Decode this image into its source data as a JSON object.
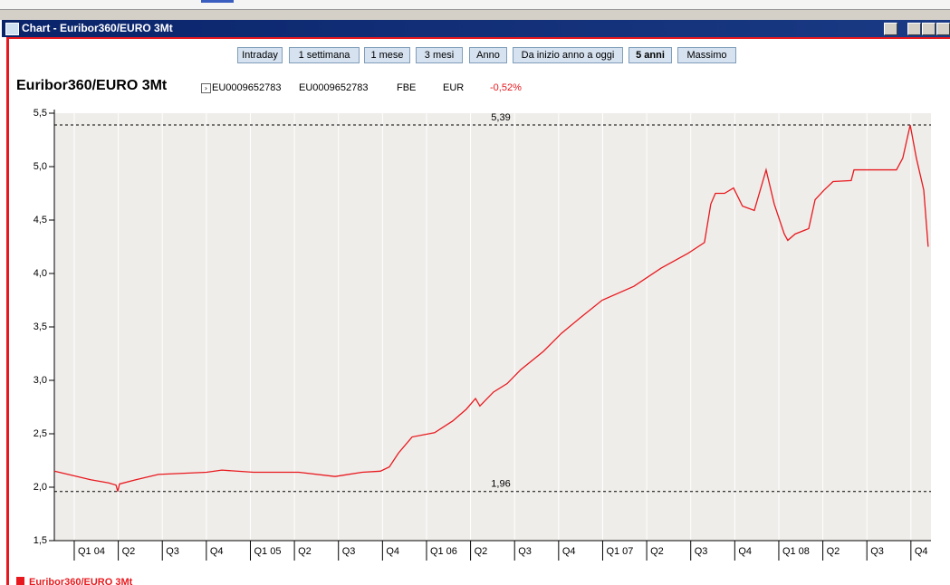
{
  "window": {
    "title": "Chart - Euribor360/EURO 3Mt",
    "buttons": [
      "Intraday",
      "1 settimana",
      "1 mese",
      "3 mesi",
      "Anno",
      "Da inizio anno a oggi",
      "5 anni",
      "Massimo"
    ]
  },
  "header": {
    "name": "Euribor360/EURO 3Mt",
    "isin": "EU0009652783",
    "code": "EU0009652783",
    "exchange": "FBE",
    "currency": "EUR",
    "change": "-0,52%"
  },
  "chart_data": {
    "type": "line",
    "x": [
      2003.887,
      2003.99,
      2004.093,
      2004.195,
      2004.237,
      2004.247,
      2004.257,
      2004.35,
      2004.478,
      2004.751,
      2004.838,
      2005.018,
      2005.275,
      2005.481,
      2005.635,
      2005.738,
      2005.789,
      2005.841,
      2005.918,
      2006.046,
      2006.149,
      2006.226,
      2006.278,
      2006.303,
      2006.38,
      2006.458,
      2006.535,
      2006.663,
      2006.766,
      2006.869,
      2006.997,
      2007.177,
      2007.332,
      2007.486,
      2007.578,
      2007.614,
      2007.64,
      2007.692,
      2007.743,
      2007.794,
      2007.861,
      2007.928,
      2007.974,
      2008.031,
      2008.051,
      2008.093,
      2008.17,
      2008.206,
      2008.257,
      2008.308,
      2008.411,
      2008.427,
      2008.668,
      2008.704,
      2008.746,
      2008.781,
      2008.823,
      2008.848
    ],
    "series": [
      {
        "name": "Euribor360/EURO 3Mt",
        "color": "#e8191e",
        "values": [
          2.15,
          2.11,
          2.07,
          2.04,
          2.02,
          1.96,
          2.03,
          2.07,
          2.12,
          2.14,
          2.16,
          2.14,
          2.14,
          2.1,
          2.14,
          2.15,
          2.19,
          2.32,
          2.47,
          2.51,
          2.62,
          2.73,
          2.83,
          2.76,
          2.89,
          2.97,
          3.1,
          3.27,
          3.44,
          3.58,
          3.75,
          3.88,
          4.05,
          4.19,
          4.29,
          4.65,
          4.75,
          4.75,
          4.8,
          4.63,
          4.59,
          4.97,
          4.65,
          4.37,
          4.31,
          4.37,
          4.42,
          4.69,
          4.78,
          4.86,
          4.87,
          4.97,
          4.97,
          5.08,
          5.39,
          5.08,
          4.78,
          4.25
        ]
      }
    ],
    "xlim": [
      2003.887,
      2008.864
    ],
    "xticks": [
      {
        "value": 2004,
        "label": "Q1 04"
      },
      {
        "value": 2004.25,
        "label": "Q2"
      },
      {
        "value": 2004.5,
        "label": "Q3"
      },
      {
        "value": 2004.75,
        "label": "Q4"
      },
      {
        "value": 2005,
        "label": "Q1 05"
      },
      {
        "value": 2005.25,
        "label": "Q2"
      },
      {
        "value": 2005.5,
        "label": "Q3"
      },
      {
        "value": 2005.75,
        "label": "Q4"
      },
      {
        "value": 2006,
        "label": "Q1 06"
      },
      {
        "value": 2006.25,
        "label": "Q2"
      },
      {
        "value": 2006.5,
        "label": "Q3"
      },
      {
        "value": 2006.75,
        "label": "Q4"
      },
      {
        "value": 2007,
        "label": "Q1 07"
      },
      {
        "value": 2007.25,
        "label": "Q2"
      },
      {
        "value": 2007.5,
        "label": "Q3"
      },
      {
        "value": 2007.75,
        "label": "Q4"
      },
      {
        "value": 2008,
        "label": "Q1 08"
      },
      {
        "value": 2008.25,
        "label": "Q2"
      },
      {
        "value": 2008.5,
        "label": "Q3"
      },
      {
        "value": 2008.75,
        "label": "Q4"
      }
    ],
    "ylim": [
      1.5,
      5.5
    ],
    "yticks": [
      {
        "value": 1.5,
        "label": "1,5"
      },
      {
        "value": 2.0,
        "label": "2,0"
      },
      {
        "value": 2.5,
        "label": "2,5"
      },
      {
        "value": 3.0,
        "label": "3,0"
      },
      {
        "value": 3.5,
        "label": "3,5"
      },
      {
        "value": 4.0,
        "label": "4,0"
      },
      {
        "value": 4.5,
        "label": "4,5"
      },
      {
        "value": 5.0,
        "label": "5,0"
      },
      {
        "value": 5.5,
        "label": "5,5"
      }
    ],
    "reference_lines": [
      {
        "value": 5.39,
        "label": "5,39"
      },
      {
        "value": 1.96,
        "label": "1,96"
      }
    ],
    "grid": true
  }
}
